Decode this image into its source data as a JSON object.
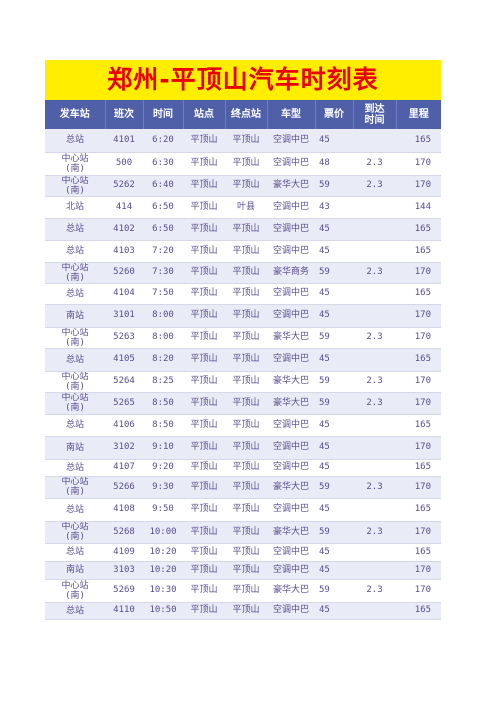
{
  "title": "郑州-平顶山汽车时刻表",
  "headers": [
    "发车站",
    "班次",
    "时间",
    "站点",
    "终点站",
    "车型",
    "票价",
    "到达时间",
    "里程"
  ],
  "rows": [
    [
      "总站",
      "4101",
      "6:20",
      "平顶山",
      "平顶山",
      "空调中巴",
      "45",
      "",
      "165"
    ],
    [
      "中心站(南)",
      "500",
      "6:30",
      "平顶山",
      "平顶山",
      "空调中巴",
      "48",
      "2.3",
      "170"
    ],
    [
      "中心站(南)",
      "5262",
      "6:40",
      "平顶山",
      "平顶山",
      "豪华大巴",
      "59",
      "2.3",
      "170"
    ],
    [
      "北站",
      "414",
      "6:50",
      "平顶山",
      "叶县",
      "空调中巴",
      "43",
      "",
      "144"
    ],
    [
      "总站",
      "4102",
      "6:50",
      "平顶山",
      "平顶山",
      "空调中巴",
      "45",
      "",
      "165"
    ],
    [
      "总站",
      "4103",
      "7:20",
      "平顶山",
      "平顶山",
      "空调中巴",
      "45",
      "",
      "165"
    ],
    [
      "中心站(南)",
      "5260",
      "7:30",
      "平顶山",
      "平顶山",
      "豪华商务",
      "59",
      "2.3",
      "170"
    ],
    [
      "总站",
      "4104",
      "7:50",
      "平顶山",
      "平顶山",
      "空调中巴",
      "45",
      "",
      "165"
    ],
    [
      "南站",
      "3101",
      "8:00",
      "平顶山",
      "平顶山",
      "空调中巴",
      "45",
      "",
      "170"
    ],
    [
      "中心站(南)",
      "5263",
      "8:00",
      "平顶山",
      "平顶山",
      "豪华大巴",
      "59",
      "2.3",
      "170"
    ],
    [
      "总站",
      "4105",
      "8:20",
      "平顶山",
      "平顶山",
      "空调中巴",
      "45",
      "",
      "165"
    ],
    [
      "中心站(南)",
      "5264",
      "8:25",
      "平顶山",
      "平顶山",
      "豪华大巴",
      "59",
      "2.3",
      "170"
    ],
    [
      "中心站(南)",
      "5265",
      "8:50",
      "平顶山",
      "平顶山",
      "豪华大巴",
      "59",
      "2.3",
      "170"
    ],
    [
      "总站",
      "4106",
      "8:50",
      "平顶山",
      "平顶山",
      "空调中巴",
      "45",
      "",
      "165"
    ],
    [
      "南站",
      "3102",
      "9:10",
      "平顶山",
      "平顶山",
      "空调中巴",
      "45",
      "",
      "170"
    ],
    [
      "总站",
      "4107",
      "9:20",
      "平顶山",
      "平顶山",
      "空调中巴",
      "45",
      "",
      "165"
    ],
    [
      "中心站(南)",
      "5266",
      "9:30",
      "平顶山",
      "平顶山",
      "豪华大巴",
      "59",
      "2.3",
      "170"
    ],
    [
      "总站",
      "4108",
      "9:50",
      "平顶山",
      "平顶山",
      "空调中巴",
      "45",
      "",
      "165"
    ],
    [
      "中心站(南)",
      "5268",
      "10:00",
      "平顶山",
      "平顶山",
      "豪华大巴",
      "59",
      "2.3",
      "170"
    ],
    [
      "总站",
      "4109",
      "10:20",
      "平顶山",
      "平顶山",
      "空调中巴",
      "45",
      "",
      "165"
    ],
    [
      "南站",
      "3103",
      "10:20",
      "平顶山",
      "平顶山",
      "空调中巴",
      "45",
      "",
      "170"
    ],
    [
      "中心站(南)",
      "5269",
      "10:30",
      "平顶山",
      "平顶山",
      "豪华大巴",
      "59",
      "2.3",
      "170"
    ],
    [
      "总站",
      "4110",
      "10:50",
      "平顶山",
      "平顶山",
      "空调中巴",
      "45",
      "",
      "165"
    ]
  ]
}
